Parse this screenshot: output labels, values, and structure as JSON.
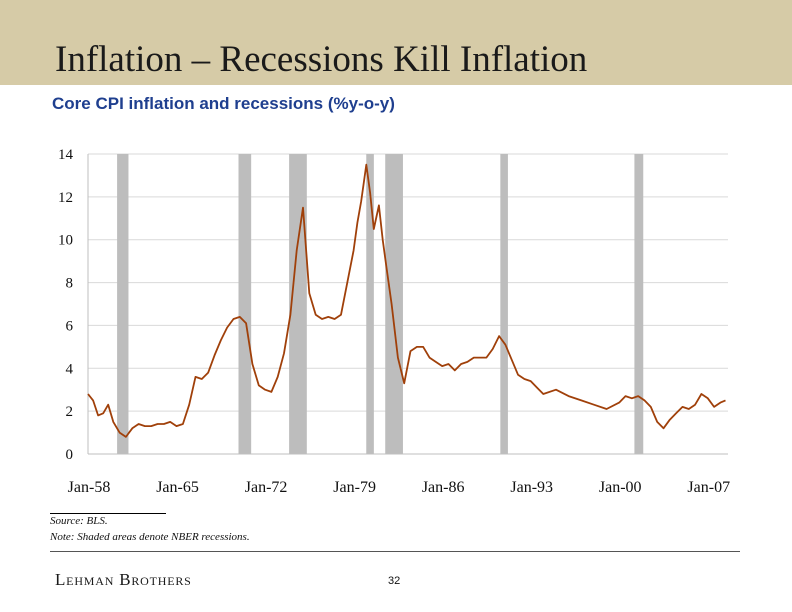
{
  "slide": {
    "title": "Inflation – Recessions Kill Inflation",
    "subtitle": "Core CPI inflation and recessions (%y-o-y)",
    "source": "Source: BLS.",
    "note": "Note: Shaded areas denote NBER recessions.",
    "brand": "Lehman Brothers",
    "page_number": "32"
  },
  "colors": {
    "header_band": "#d6cba7",
    "subtitle": "#1f3f8f",
    "line": "#a0400a",
    "recession": "#bdbdbd",
    "grid": "#d9d9d9"
  },
  "chart_data": {
    "type": "line",
    "title": "Core CPI inflation and recessions (%y-o-y)",
    "xlabel": "",
    "ylabel": "",
    "ylim": [
      0,
      14
    ],
    "xlim": [
      1958.0,
      2008.6
    ],
    "y_ticks": [
      "0",
      "2",
      "4",
      "6",
      "8",
      "10",
      "12",
      "14"
    ],
    "x_ticks": [
      {
        "label": "Jan-58",
        "value": 1958.0
      },
      {
        "label": "Jan-65",
        "value": 1965.0
      },
      {
        "label": "Jan-72",
        "value": 1972.0
      },
      {
        "label": "Jan-79",
        "value": 1979.0
      },
      {
        "label": "Jan-86",
        "value": 1986.0
      },
      {
        "label": "Jan-93",
        "value": 1993.0
      },
      {
        "label": "Jan-00",
        "value": 2000.0
      },
      {
        "label": "Jan-07",
        "value": 2007.0
      }
    ],
    "grid": "horizontal",
    "recessions": [
      {
        "start": 1960.3,
        "end": 1961.2
      },
      {
        "start": 1969.9,
        "end": 1970.9
      },
      {
        "start": 1973.9,
        "end": 1975.3
      },
      {
        "start": 1980.0,
        "end": 1980.6
      },
      {
        "start": 1981.5,
        "end": 1982.9
      },
      {
        "start": 1990.6,
        "end": 1991.2
      },
      {
        "start": 2001.2,
        "end": 2001.9
      }
    ],
    "series": [
      {
        "x": [
          1958.0,
          1958.4,
          1958.8,
          1959.2,
          1959.6,
          1960.0,
          1960.5,
          1961.0,
          1961.5,
          1962.0,
          1962.5,
          1963.0,
          1963.5,
          1964.0,
          1964.5,
          1965.0,
          1965.5,
          1966.0,
          1966.5,
          1967.0,
          1967.5,
          1968.0,
          1968.5,
          1969.0,
          1969.5,
          1970.0,
          1970.5,
          1971.0,
          1971.5,
          1972.0,
          1972.5,
          1973.0,
          1973.5,
          1974.0,
          1974.5,
          1975.0,
          1975.5,
          1976.0,
          1976.5,
          1977.0,
          1977.5,
          1978.0,
          1978.5,
          1979.0,
          1979.3,
          1979.6,
          1980.0,
          1980.3,
          1980.6,
          1981.0,
          1981.3,
          1981.6,
          1982.0,
          1982.5,
          1983.0,
          1983.5,
          1984.0,
          1984.5,
          1985.0,
          1985.5,
          1986.0,
          1986.5,
          1987.0,
          1987.5,
          1988.0,
          1988.5,
          1989.0,
          1989.5,
          1990.0,
          1990.5,
          1991.0,
          1991.5,
          1992.0,
          1992.5,
          1993.0,
          1993.5,
          1994.0,
          1995.0,
          1996.0,
          1997.0,
          1998.0,
          1999.0,
          2000.0,
          2000.5,
          2001.0,
          2001.5,
          2002.0,
          2002.5,
          2003.0,
          2003.5,
          2004.0,
          2004.5,
          2005.0,
          2005.5,
          2006.0,
          2006.5,
          2007.0,
          2007.5,
          2008.0,
          2008.4
        ],
        "values": [
          2.8,
          2.5,
          1.8,
          1.9,
          2.3,
          1.5,
          1.0,
          0.8,
          1.2,
          1.4,
          1.3,
          1.3,
          1.4,
          1.4,
          1.5,
          1.3,
          1.4,
          2.3,
          3.6,
          3.5,
          3.8,
          4.6,
          5.3,
          5.9,
          6.3,
          6.4,
          6.1,
          4.2,
          3.2,
          3.0,
          2.9,
          3.6,
          4.7,
          6.5,
          9.5,
          11.5,
          7.5,
          6.5,
          6.3,
          6.4,
          6.3,
          6.5,
          8.0,
          9.5,
          10.8,
          11.8,
          13.5,
          12.2,
          10.5,
          11.6,
          10.0,
          8.7,
          7.0,
          4.5,
          3.3,
          4.8,
          5.0,
          5.0,
          4.5,
          4.3,
          4.1,
          4.2,
          3.9,
          4.2,
          4.3,
          4.5,
          4.5,
          4.5,
          4.9,
          5.5,
          5.1,
          4.4,
          3.7,
          3.5,
          3.4,
          3.1,
          2.8,
          3.0,
          2.7,
          2.5,
          2.3,
          2.1,
          2.4,
          2.7,
          2.6,
          2.7,
          2.5,
          2.2,
          1.5,
          1.2,
          1.6,
          1.9,
          2.2,
          2.1,
          2.3,
          2.8,
          2.6,
          2.2,
          2.4,
          2.5
        ]
      }
    ]
  }
}
